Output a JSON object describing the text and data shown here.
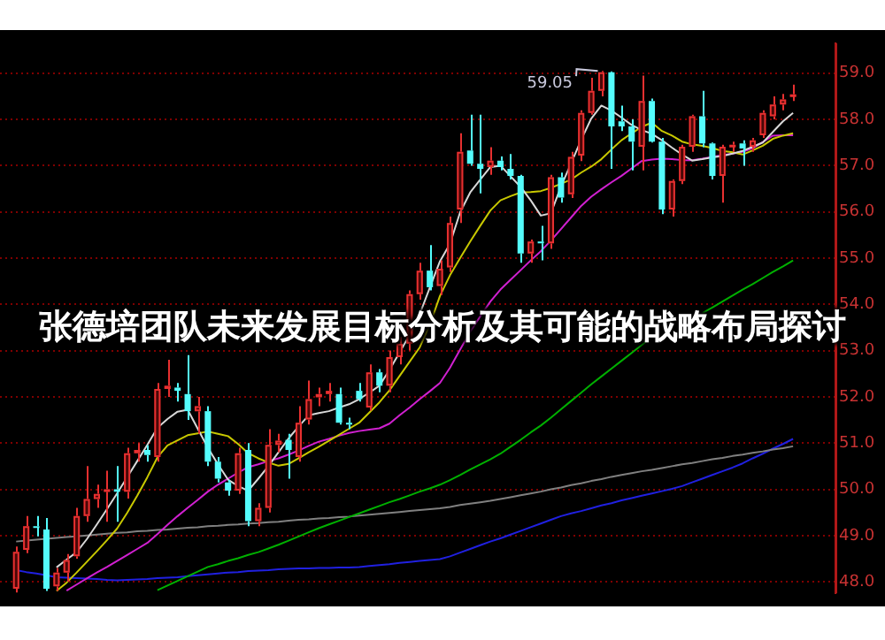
{
  "chart_data": {
    "type": "candlestick",
    "title": "张德培团队未来发展目标分析及其可能的战略布局探讨",
    "categories": [
      null,
      null,
      null,
      null,
      null,
      null,
      null,
      null,
      null,
      null,
      null,
      null,
      null,
      null,
      null,
      null,
      null,
      null,
      null,
      null,
      null,
      null,
      null,
      null,
      null,
      null,
      null,
      null,
      null,
      null,
      null,
      null,
      null,
      null,
      null,
      null,
      null,
      null,
      null,
      null,
      null,
      null,
      null,
      null,
      null,
      null,
      null,
      null,
      null,
      null,
      null,
      null,
      null,
      null,
      null,
      null,
      null,
      null,
      null,
      null,
      null,
      null,
      null,
      null,
      null,
      null,
      null,
      null,
      null,
      null,
      null,
      null,
      null,
      null,
      null,
      null,
      null,
      null
    ],
    "ohlc": [
      [
        47.85,
        48.76,
        47.77,
        48.65
      ],
      [
        48.69,
        49.42,
        48.62,
        49.2
      ],
      [
        49.2,
        49.42,
        48.98,
        49.17
      ],
      [
        49.13,
        49.38,
        47.8,
        47.85
      ],
      [
        47.9,
        48.3,
        47.8,
        48.2
      ],
      [
        48.2,
        48.6,
        48.0,
        48.47
      ],
      [
        48.55,
        49.6,
        48.5,
        49.42
      ],
      [
        49.42,
        50.5,
        49.3,
        49.79
      ],
      [
        49.79,
        50.1,
        49.6,
        49.9
      ],
      [
        49.95,
        50.4,
        49.3,
        50.0
      ],
      [
        50.0,
        50.5,
        49.3,
        49.95
      ],
      [
        49.95,
        50.9,
        49.8,
        50.78
      ],
      [
        50.78,
        51.0,
        50.6,
        50.85
      ],
      [
        50.85,
        50.95,
        50.6,
        50.74
      ],
      [
        50.7,
        52.3,
        50.6,
        52.17
      ],
      [
        52.17,
        52.8,
        52.0,
        52.24
      ],
      [
        52.2,
        52.3,
        51.9,
        52.13
      ],
      [
        52.06,
        52.9,
        51.5,
        51.69
      ],
      [
        51.69,
        52.0,
        51.2,
        51.8
      ],
      [
        51.69,
        51.8,
        50.5,
        50.6
      ],
      [
        50.6,
        50.7,
        50.15,
        50.23
      ],
      [
        50.15,
        50.2,
        49.86,
        49.97
      ],
      [
        49.97,
        50.9,
        49.9,
        50.78
      ],
      [
        50.85,
        51.0,
        49.2,
        49.31
      ],
      [
        49.31,
        49.7,
        49.2,
        49.6
      ],
      [
        49.6,
        51.3,
        49.5,
        50.96
      ],
      [
        50.96,
        51.2,
        50.8,
        51.05
      ],
      [
        51.07,
        51.2,
        50.23,
        50.85
      ],
      [
        50.7,
        51.8,
        50.6,
        51.44
      ],
      [
        51.51,
        52.35,
        51.4,
        51.95
      ],
      [
        51.99,
        52.2,
        51.8,
        52.06
      ],
      [
        52.06,
        52.3,
        51.9,
        52.13
      ],
      [
        52.06,
        52.2,
        51.4,
        51.44
      ],
      [
        51.44,
        51.55,
        51.3,
        51.4
      ],
      [
        52.13,
        52.3,
        51.9,
        51.95
      ],
      [
        51.77,
        52.7,
        51.7,
        52.53
      ],
      [
        52.53,
        52.6,
        52.1,
        52.24
      ],
      [
        52.24,
        53.0,
        52.1,
        52.86
      ],
      [
        52.86,
        53.3,
        52.7,
        53.15
      ],
      [
        53.15,
        54.3,
        53.0,
        54.22
      ],
      [
        54.22,
        54.9,
        54.1,
        54.73
      ],
      [
        54.73,
        55.28,
        54.3,
        54.37
      ],
      [
        54.4,
        54.95,
        54.2,
        54.77
      ],
      [
        54.8,
        55.9,
        54.7,
        55.76
      ],
      [
        56.05,
        57.7,
        55.76,
        57.3
      ],
      [
        57.33,
        58.1,
        57.0,
        57.04
      ],
      [
        57.04,
        58.1,
        56.4,
        56.93
      ],
      [
        56.97,
        57.4,
        56.8,
        57.11
      ],
      [
        57.11,
        57.2,
        56.9,
        56.97
      ],
      [
        56.93,
        57.25,
        56.7,
        56.78
      ],
      [
        56.78,
        56.8,
        54.9,
        55.1
      ],
      [
        55.1,
        55.4,
        54.9,
        55.36
      ],
      [
        55.36,
        55.7,
        54.95,
        55.32
      ],
      [
        55.32,
        56.8,
        55.2,
        56.75
      ],
      [
        56.75,
        56.85,
        56.2,
        56.31
      ],
      [
        56.38,
        57.3,
        56.3,
        57.19
      ],
      [
        57.22,
        58.2,
        57.1,
        58.14
      ],
      [
        58.14,
        58.9,
        58.1,
        58.62
      ],
      [
        58.62,
        59.05,
        58.5,
        59.02
      ],
      [
        59.02,
        59.04,
        56.93,
        57.85
      ],
      [
        57.96,
        58.3,
        57.75,
        57.85
      ],
      [
        57.85,
        58.0,
        56.9,
        57.52
      ],
      [
        57.41,
        58.95,
        56.9,
        58.4
      ],
      [
        58.4,
        58.45,
        57.5,
        57.52
      ],
      [
        57.52,
        57.6,
        55.95,
        56.05
      ],
      [
        56.05,
        56.7,
        55.9,
        56.67
      ],
      [
        56.67,
        57.45,
        56.6,
        57.41
      ],
      [
        57.41,
        58.1,
        57.3,
        58.07
      ],
      [
        58.07,
        58.62,
        57.4,
        57.48
      ],
      [
        57.48,
        57.5,
        56.7,
        56.78
      ],
      [
        56.78,
        57.45,
        56.2,
        57.41
      ],
      [
        57.41,
        57.52,
        57.3,
        57.45
      ],
      [
        57.48,
        57.55,
        57.0,
        57.37
      ],
      [
        57.41,
        57.6,
        57.3,
        57.55
      ],
      [
        57.66,
        58.2,
        57.6,
        58.14
      ],
      [
        58.07,
        58.5,
        58.0,
        58.32
      ],
      [
        58.32,
        58.55,
        58.2,
        58.43
      ],
      [
        58.52,
        58.75,
        58.4,
        58.54
      ]
    ],
    "series": [
      {
        "type": "line",
        "color": "#d8d8d8",
        "values": [
          null,
          null,
          null,
          null,
          48.31,
          48.48,
          48.64,
          48.92,
          49.24,
          49.57,
          49.91,
          50.26,
          50.61,
          50.96,
          51.33,
          51.52,
          51.68,
          51.72,
          51.31,
          50.9,
          50.54,
          50.21,
          50.07,
          49.97,
          50.23,
          50.5,
          50.8,
          51.1,
          51.36,
          51.6,
          51.65,
          51.69,
          51.77,
          51.84,
          51.95,
          52.09,
          52.24,
          52.58,
          52.96,
          53.34,
          53.79,
          54.36,
          54.93,
          55.31,
          55.99,
          56.42,
          56.7,
          56.97,
          57.0,
          56.77,
          56.54,
          56.25,
          55.92,
          55.97,
          56.55,
          57.05,
          57.56,
          58.02,
          58.3,
          58.19,
          58.04,
          57.88,
          57.77,
          57.69,
          57.55,
          57.39,
          57.24,
          57.11,
          57.14,
          57.18,
          57.21,
          57.26,
          57.32,
          57.41,
          57.5,
          57.73,
          57.96,
          58.14
        ]
      },
      {
        "type": "line",
        "color": "#c8c800",
        "values": [
          null,
          null,
          null,
          null,
          47.8,
          47.98,
          48.2,
          48.43,
          48.66,
          48.9,
          49.15,
          49.49,
          49.86,
          50.26,
          50.69,
          50.95,
          51.06,
          51.17,
          51.21,
          51.25,
          51.2,
          51.15,
          50.98,
          50.78,
          50.67,
          50.58,
          50.51,
          50.55,
          50.67,
          50.8,
          50.92,
          51.05,
          51.18,
          51.31,
          51.44,
          51.66,
          51.88,
          52.14,
          52.45,
          52.76,
          53.07,
          53.56,
          54.18,
          54.63,
          55.0,
          55.36,
          55.7,
          56.03,
          56.25,
          56.34,
          56.42,
          56.43,
          56.45,
          56.52,
          56.61,
          56.7,
          56.85,
          56.98,
          57.14,
          57.35,
          57.55,
          57.7,
          57.84,
          57.93,
          57.75,
          57.65,
          57.52,
          57.46,
          57.43,
          57.38,
          57.32,
          57.29,
          57.24,
          57.33,
          57.43,
          57.58,
          57.65,
          57.7
        ]
      },
      {
        "type": "line",
        "color": "#d020d0",
        "values": [
          null,
          null,
          null,
          null,
          null,
          47.81,
          47.94,
          48.07,
          48.2,
          48.32,
          48.45,
          48.58,
          48.71,
          48.84,
          49.03,
          49.23,
          49.42,
          49.6,
          49.77,
          49.95,
          50.1,
          50.23,
          50.36,
          50.48,
          50.54,
          50.61,
          50.67,
          50.75,
          50.84,
          50.94,
          51.03,
          51.09,
          51.16,
          51.22,
          51.26,
          51.29,
          51.32,
          51.42,
          51.6,
          51.77,
          51.95,
          52.12,
          52.3,
          52.63,
          53.02,
          53.41,
          53.74,
          54.06,
          54.32,
          54.53,
          54.74,
          54.95,
          55.15,
          55.38,
          55.63,
          55.88,
          56.13,
          56.33,
          56.49,
          56.64,
          56.78,
          56.94,
          57.1,
          57.13,
          57.15,
          57.14,
          57.12,
          57.12,
          57.15,
          57.19,
          57.23,
          57.26,
          57.3,
          57.38,
          57.51,
          57.65,
          57.66,
          57.66
        ]
      },
      {
        "type": "line",
        "color": "#00b000",
        "values": [
          null,
          null,
          null,
          null,
          null,
          null,
          null,
          null,
          null,
          null,
          null,
          null,
          null,
          null,
          47.82,
          47.92,
          48.02,
          48.12,
          48.22,
          48.32,
          48.38,
          48.45,
          48.51,
          48.58,
          48.64,
          48.72,
          48.8,
          48.89,
          48.98,
          49.07,
          49.16,
          49.24,
          49.32,
          49.4,
          49.48,
          49.56,
          49.64,
          49.72,
          49.79,
          49.87,
          49.95,
          50.02,
          50.1,
          50.2,
          50.31,
          50.43,
          50.54,
          50.65,
          50.77,
          50.92,
          51.07,
          51.23,
          51.38,
          51.55,
          51.73,
          51.91,
          52.09,
          52.27,
          52.44,
          52.61,
          52.78,
          52.95,
          53.12,
          53.29,
          null,
          null,
          null,
          null,
          53.81,
          53.93,
          54.06,
          54.19,
          54.32,
          54.44,
          54.57,
          54.7,
          54.82,
          54.95
        ]
      },
      {
        "type": "line",
        "color": "#808080",
        "values": [
          48.87,
          48.89,
          48.91,
          48.93,
          48.95,
          48.97,
          48.98,
          49.0,
          49.02,
          49.04,
          49.06,
          49.07,
          49.09,
          49.1,
          49.12,
          49.13,
          49.15,
          49.17,
          49.18,
          49.2,
          49.21,
          49.23,
          49.24,
          49.26,
          49.27,
          49.29,
          49.3,
          49.32,
          49.34,
          49.35,
          49.37,
          49.38,
          49.4,
          49.41,
          49.43,
          49.45,
          49.47,
          49.49,
          49.51,
          49.53,
          49.55,
          49.57,
          49.59,
          49.62,
          49.66,
          49.69,
          49.72,
          49.75,
          49.79,
          49.83,
          49.87,
          49.91,
          49.95,
          50.0,
          50.04,
          50.09,
          50.13,
          50.18,
          50.22,
          50.27,
          50.31,
          50.35,
          50.39,
          50.42,
          50.46,
          50.5,
          50.54,
          50.57,
          50.61,
          50.65,
          50.68,
          50.72,
          50.75,
          50.79,
          50.82,
          50.86,
          50.89,
          50.93
        ]
      },
      {
        "type": "line",
        "color": "#2020e0",
        "values": [
          48.25,
          48.21,
          48.18,
          48.14,
          48.1,
          48.09,
          48.08,
          48.07,
          48.06,
          48.04,
          48.03,
          48.04,
          48.05,
          48.06,
          48.08,
          48.09,
          48.1,
          48.12,
          48.14,
          48.16,
          48.18,
          48.2,
          48.21,
          48.23,
          48.24,
          48.25,
          48.27,
          48.28,
          48.29,
          48.29,
          48.3,
          48.3,
          48.31,
          48.31,
          48.32,
          48.34,
          48.36,
          48.38,
          48.41,
          48.43,
          48.45,
          48.47,
          48.49,
          48.55,
          48.63,
          48.71,
          48.79,
          48.87,
          48.94,
          49.02,
          49.1,
          49.18,
          49.26,
          49.34,
          49.42,
          49.48,
          49.53,
          49.59,
          49.65,
          49.7,
          49.76,
          49.81,
          49.86,
          49.91,
          49.96,
          50.01,
          50.07,
          50.15,
          50.23,
          50.31,
          50.39,
          50.47,
          50.56,
          50.67,
          50.77,
          50.88,
          50.98,
          51.09
        ]
      }
    ],
    "ylim": [
      47.75,
      59.65
    ],
    "yticks": [
      {
        "value": 48,
        "label": "48.0"
      },
      {
        "value": 49,
        "label": "49.0"
      },
      {
        "value": 50,
        "label": "50.0"
      },
      {
        "value": 51,
        "label": "51.0"
      },
      {
        "value": 52,
        "label": "52.0"
      },
      {
        "value": 53,
        "label": "53.0"
      },
      {
        "value": 54,
        "label": "54.0"
      },
      {
        "value": 55,
        "label": "55.0"
      },
      {
        "value": 56,
        "label": "56.0"
      },
      {
        "value": 57,
        "label": "57.0"
      },
      {
        "value": 58,
        "label": "58.0"
      },
      {
        "value": 59,
        "label": "59.0"
      }
    ],
    "annotations": [
      "59.05"
    ],
    "grid": "y",
    "tick_labels": "y",
    "marker": "none",
    "line_style": "solid"
  }
}
